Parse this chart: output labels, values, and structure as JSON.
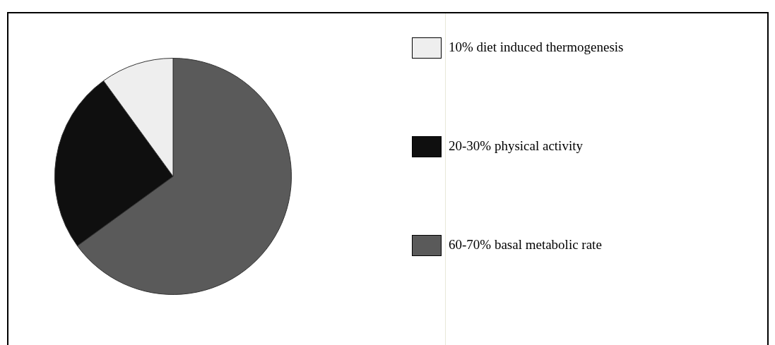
{
  "chart_data": {
    "type": "pie",
    "categories": [
      "60-70% basal metabolic rate",
      "20-30% physical activity",
      "10% diet induced thermogenesis"
    ],
    "values": [
      65,
      25,
      10
    ],
    "colors": [
      "#5a5a5a",
      "#0f0f0f",
      "#eeeeee"
    ],
    "legend": "right"
  }
}
